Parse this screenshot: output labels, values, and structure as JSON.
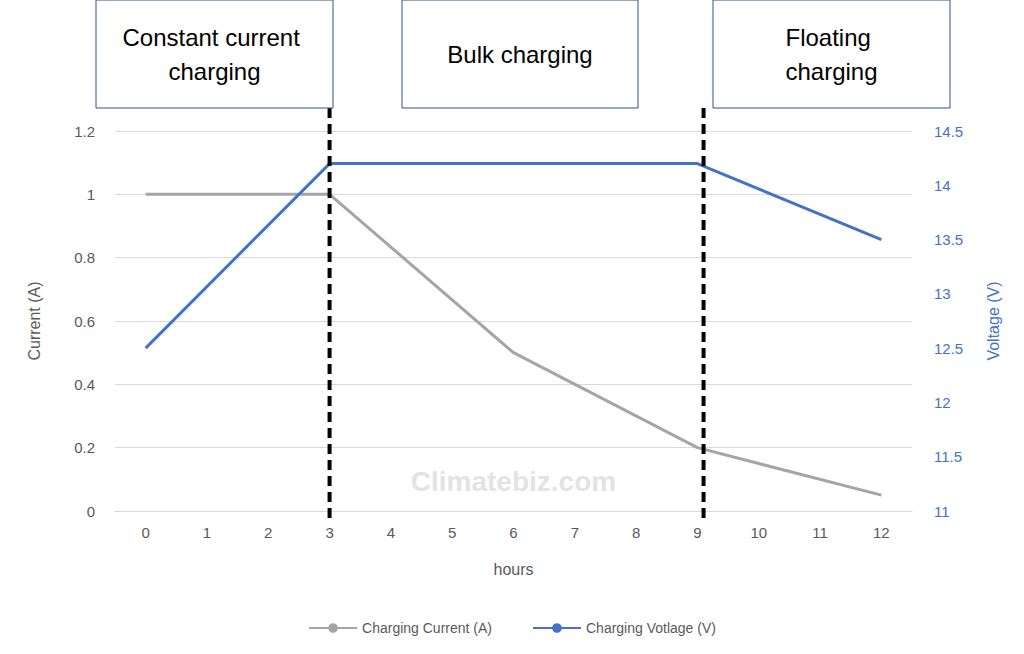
{
  "chart_data": {
    "type": "line",
    "x_label": "hours",
    "y_label": "Current (A)",
    "y2_label": "Voltage (V)",
    "x": [
      0,
      3,
      6,
      9,
      12
    ],
    "xlim": [
      -0.5,
      12.5
    ],
    "xticks": [
      0,
      1,
      2,
      3,
      4,
      5,
      6,
      7,
      8,
      9,
      10,
      11,
      12
    ],
    "ylim": [
      0,
      1.2
    ],
    "yticks": [
      0,
      0.2,
      0.4,
      0.6,
      0.8,
      1,
      1.2
    ],
    "y2lim": [
      11,
      14.5
    ],
    "y2ticks": [
      11,
      11.5,
      12,
      12.5,
      13,
      13.5,
      14,
      14.5
    ],
    "series": [
      {
        "name": "Charging Current (A)",
        "color": "#a5a5a5",
        "values": [
          1,
          1,
          0.5,
          0.2,
          0.05
        ]
      },
      {
        "name": "Charging Votlage (V)",
        "color": "#4472c4",
        "axis": "y2",
        "values": [
          12.5,
          14.2,
          14.2,
          14.2,
          13.5
        ]
      }
    ],
    "phase_boundaries": [
      3,
      9.1
    ],
    "annotations": [
      {
        "text": "Constant current charging"
      },
      {
        "text": "Bulk charging"
      },
      {
        "text": "Floating charging"
      }
    ],
    "watermark": "Climatebiz.com",
    "legend": "bottom",
    "grid": true
  }
}
